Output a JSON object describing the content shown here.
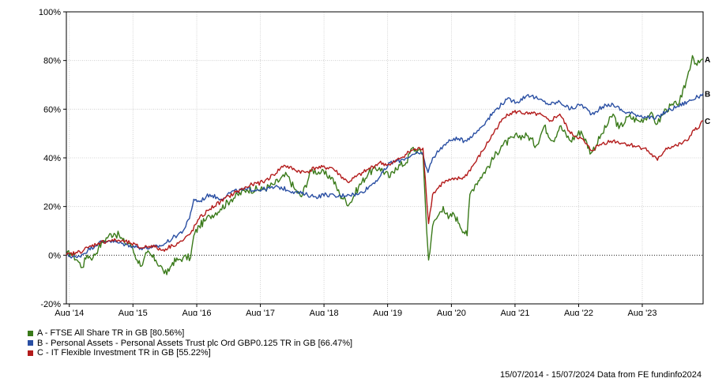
{
  "chart_data": {
    "type": "line",
    "y_ticks": [
      "100%",
      "80%",
      "60%",
      "40%",
      "20%",
      "0%",
      "-20%"
    ],
    "y_tick_values": [
      100,
      80,
      60,
      40,
      20,
      0,
      -20
    ],
    "ylim": [
      -20,
      100
    ],
    "x_ticks": [
      "Aug '14",
      "Aug '15",
      "Aug '16",
      "Aug '17",
      "Aug '18",
      "Aug '19",
      "Aug '20",
      "Aug '21",
      "Aug '22",
      "Aug '23"
    ],
    "x_tick_dates": [
      "2014-08-01",
      "2015-08-01",
      "2016-08-01",
      "2017-08-01",
      "2018-08-01",
      "2019-08-01",
      "2020-08-01",
      "2021-08-01",
      "2022-08-01",
      "2023-08-01"
    ],
    "xlim": [
      "2014-07-15",
      "2024-07-15"
    ],
    "grid": true,
    "zero_line": "dotted",
    "series": [
      {
        "name": "A - FTSE All Share TR in GB [80.56%]",
        "end_label": "A",
        "color": "#3a7a1a",
        "points": [
          [
            "2014-07-15",
            0
          ],
          [
            "2014-08-10",
            1
          ],
          [
            "2014-09-15",
            -2
          ],
          [
            "2014-10-15",
            -5
          ],
          [
            "2014-11-10",
            0
          ],
          [
            "2014-12-15",
            -1
          ],
          [
            "2015-01-15",
            3
          ],
          [
            "2015-02-15",
            6
          ],
          [
            "2015-03-15",
            8
          ],
          [
            "2015-04-15",
            9
          ],
          [
            "2015-05-15",
            8
          ],
          [
            "2015-06-15",
            5
          ],
          [
            "2015-07-15",
            5
          ],
          [
            "2015-08-25",
            -2
          ],
          [
            "2015-09-25",
            -4
          ],
          [
            "2015-10-20",
            1
          ],
          [
            "2015-12-10",
            -2
          ],
          [
            "2016-01-20",
            -6
          ],
          [
            "2016-02-11",
            -8
          ],
          [
            "2016-03-15",
            -3
          ],
          [
            "2016-04-15",
            -2
          ],
          [
            "2016-05-15",
            -1
          ],
          [
            "2016-06-27",
            -1
          ],
          [
            "2016-07-15",
            8
          ],
          [
            "2016-08-15",
            12
          ],
          [
            "2016-09-15",
            14
          ],
          [
            "2016-10-15",
            16
          ],
          [
            "2016-12-15",
            19
          ],
          [
            "2017-02-15",
            23
          ],
          [
            "2017-05-15",
            27
          ],
          [
            "2017-08-15",
            27
          ],
          [
            "2017-10-15",
            29
          ],
          [
            "2017-12-31",
            33
          ],
          [
            "2018-02-15",
            27
          ],
          [
            "2018-03-25",
            24
          ],
          [
            "2018-05-20",
            35
          ],
          [
            "2018-07-15",
            34
          ],
          [
            "2018-09-15",
            32
          ],
          [
            "2018-10-30",
            25
          ],
          [
            "2018-12-24",
            21
          ],
          [
            "2019-02-15",
            28
          ],
          [
            "2019-04-15",
            34
          ],
          [
            "2019-06-15",
            36
          ],
          [
            "2019-08-15",
            32
          ],
          [
            "2019-09-15",
            36
          ],
          [
            "2019-11-15",
            38
          ],
          [
            "2019-12-20",
            44
          ],
          [
            "2020-01-20",
            43
          ],
          [
            "2020-02-20",
            42
          ],
          [
            "2020-03-12",
            10
          ],
          [
            "2020-03-23",
            -2
          ],
          [
            "2020-04-15",
            12
          ],
          [
            "2020-05-15",
            16
          ],
          [
            "2020-06-15",
            20
          ],
          [
            "2020-07-15",
            15
          ],
          [
            "2020-08-15",
            17
          ],
          [
            "2020-09-15",
            13
          ],
          [
            "2020-10-30",
            8
          ],
          [
            "2020-11-15",
            25
          ],
          [
            "2020-12-15",
            29
          ],
          [
            "2021-01-15",
            32
          ],
          [
            "2021-03-15",
            38
          ],
          [
            "2021-05-15",
            45
          ],
          [
            "2021-08-15",
            49
          ],
          [
            "2021-10-15",
            49
          ],
          [
            "2021-11-30",
            45
          ],
          [
            "2022-01-15",
            53
          ],
          [
            "2022-03-07",
            47
          ],
          [
            "2022-04-15",
            53
          ],
          [
            "2022-06-15",
            47
          ],
          [
            "2022-08-15",
            51
          ],
          [
            "2022-10-12",
            42
          ],
          [
            "2022-12-15",
            50
          ],
          [
            "2023-02-15",
            58
          ],
          [
            "2023-03-20",
            52
          ],
          [
            "2023-05-15",
            57
          ],
          [
            "2023-07-15",
            55
          ],
          [
            "2023-09-15",
            58
          ],
          [
            "2023-10-27",
            54
          ],
          [
            "2023-12-15",
            60
          ],
          [
            "2024-02-15",
            62
          ],
          [
            "2024-03-15",
            65
          ],
          [
            "2024-04-15",
            73
          ],
          [
            "2024-05-15",
            82
          ],
          [
            "2024-06-10",
            78
          ],
          [
            "2024-07-15",
            80.56
          ]
        ]
      },
      {
        "name": "B - Personal Assets - Personal Assets Trust plc Ord GBP0.125 TR in GB [66.47%]",
        "end_label": "B",
        "color": "#2a4fa3",
        "points": [
          [
            "2014-07-15",
            0
          ],
          [
            "2014-09-15",
            -1
          ],
          [
            "2014-11-15",
            2
          ],
          [
            "2015-01-15",
            5
          ],
          [
            "2015-03-15",
            6
          ],
          [
            "2015-05-15",
            5
          ],
          [
            "2015-07-15",
            4
          ],
          [
            "2015-09-15",
            3
          ],
          [
            "2015-11-15",
            3
          ],
          [
            "2016-01-15",
            4
          ],
          [
            "2016-03-15",
            7
          ],
          [
            "2016-05-15",
            10
          ],
          [
            "2016-06-20",
            15
          ],
          [
            "2016-07-15",
            23
          ],
          [
            "2016-08-15",
            22
          ],
          [
            "2016-10-15",
            25
          ],
          [
            "2016-12-15",
            23
          ],
          [
            "2017-02-15",
            26
          ],
          [
            "2017-05-15",
            27
          ],
          [
            "2017-08-15",
            27
          ],
          [
            "2017-11-15",
            28
          ],
          [
            "2018-02-15",
            26
          ],
          [
            "2018-04-15",
            25
          ],
          [
            "2018-06-15",
            24
          ],
          [
            "2018-08-15",
            25
          ],
          [
            "2018-10-15",
            24
          ],
          [
            "2018-12-15",
            25
          ],
          [
            "2019-02-15",
            25
          ],
          [
            "2019-04-15",
            28
          ],
          [
            "2019-06-15",
            32
          ],
          [
            "2019-08-15",
            38
          ],
          [
            "2019-10-15",
            39
          ],
          [
            "2019-12-15",
            41
          ],
          [
            "2020-02-15",
            42
          ],
          [
            "2020-03-20",
            34
          ],
          [
            "2020-04-15",
            40
          ],
          [
            "2020-06-15",
            45
          ],
          [
            "2020-08-15",
            48
          ],
          [
            "2020-10-15",
            47
          ],
          [
            "2020-12-15",
            50
          ],
          [
            "2021-02-15",
            55
          ],
          [
            "2021-04-15",
            60
          ],
          [
            "2021-06-15",
            64
          ],
          [
            "2021-08-15",
            63
          ],
          [
            "2021-10-15",
            66
          ],
          [
            "2021-12-15",
            64
          ],
          [
            "2022-02-15",
            62
          ],
          [
            "2022-04-15",
            63
          ],
          [
            "2022-06-15",
            60
          ],
          [
            "2022-08-15",
            62
          ],
          [
            "2022-10-15",
            58
          ],
          [
            "2022-12-15",
            61
          ],
          [
            "2023-02-15",
            62
          ],
          [
            "2023-04-15",
            59
          ],
          [
            "2023-06-15",
            58
          ],
          [
            "2023-08-15",
            57
          ],
          [
            "2023-10-15",
            56
          ],
          [
            "2023-12-15",
            59
          ],
          [
            "2024-02-15",
            61
          ],
          [
            "2024-04-15",
            63
          ],
          [
            "2024-06-15",
            65
          ],
          [
            "2024-07-15",
            66.47
          ]
        ]
      },
      {
        "name": "C - IT Flexible Investment TR in GB [55.22%]",
        "end_label": "C",
        "color": "#b31b1b",
        "points": [
          [
            "2014-07-15",
            0
          ],
          [
            "2014-09-15",
            1
          ],
          [
            "2014-11-15",
            3
          ],
          [
            "2015-01-15",
            5
          ],
          [
            "2015-03-15",
            6
          ],
          [
            "2015-05-15",
            6
          ],
          [
            "2015-07-15",
            5
          ],
          [
            "2015-09-15",
            3
          ],
          [
            "2015-11-15",
            4
          ],
          [
            "2016-01-15",
            2
          ],
          [
            "2016-03-15",
            4
          ],
          [
            "2016-05-15",
            6
          ],
          [
            "2016-06-27",
            9
          ],
          [
            "2016-08-15",
            15
          ],
          [
            "2016-10-15",
            19
          ],
          [
            "2016-12-15",
            22
          ],
          [
            "2017-03-15",
            26
          ],
          [
            "2017-06-15",
            29
          ],
          [
            "2017-08-15",
            30
          ],
          [
            "2017-10-15",
            33
          ],
          [
            "2017-12-15",
            37
          ],
          [
            "2018-02-15",
            35
          ],
          [
            "2018-04-15",
            34
          ],
          [
            "2018-06-15",
            36
          ],
          [
            "2018-09-15",
            36
          ],
          [
            "2018-12-15",
            30
          ],
          [
            "2019-03-15",
            34
          ],
          [
            "2019-06-15",
            38
          ],
          [
            "2019-08-15",
            37
          ],
          [
            "2019-10-15",
            40
          ],
          [
            "2019-12-15",
            43
          ],
          [
            "2020-02-20",
            44
          ],
          [
            "2020-03-23",
            13
          ],
          [
            "2020-04-15",
            25
          ],
          [
            "2020-06-15",
            30
          ],
          [
            "2020-08-15",
            31
          ],
          [
            "2020-10-15",
            32
          ],
          [
            "2020-12-15",
            38
          ],
          [
            "2021-02-15",
            45
          ],
          [
            "2021-04-15",
            52
          ],
          [
            "2021-06-15",
            58
          ],
          [
            "2021-08-15",
            59
          ],
          [
            "2021-10-15",
            58
          ],
          [
            "2021-12-15",
            58
          ],
          [
            "2022-02-15",
            55
          ],
          [
            "2022-04-15",
            58
          ],
          [
            "2022-06-15",
            50
          ],
          [
            "2022-08-15",
            48
          ],
          [
            "2022-10-12",
            43
          ],
          [
            "2022-12-15",
            46
          ],
          [
            "2023-02-15",
            47
          ],
          [
            "2023-04-15",
            46
          ],
          [
            "2023-06-15",
            45
          ],
          [
            "2023-08-15",
            44
          ],
          [
            "2023-10-27",
            39
          ],
          [
            "2023-12-15",
            44
          ],
          [
            "2024-02-15",
            45
          ],
          [
            "2024-04-15",
            47
          ],
          [
            "2024-05-15",
            51
          ],
          [
            "2024-06-15",
            52
          ],
          [
            "2024-07-15",
            55.22
          ]
        ]
      }
    ]
  },
  "footer": {
    "text": "15/07/2014 - 15/07/2024 Data from FE fundinfo2024"
  }
}
